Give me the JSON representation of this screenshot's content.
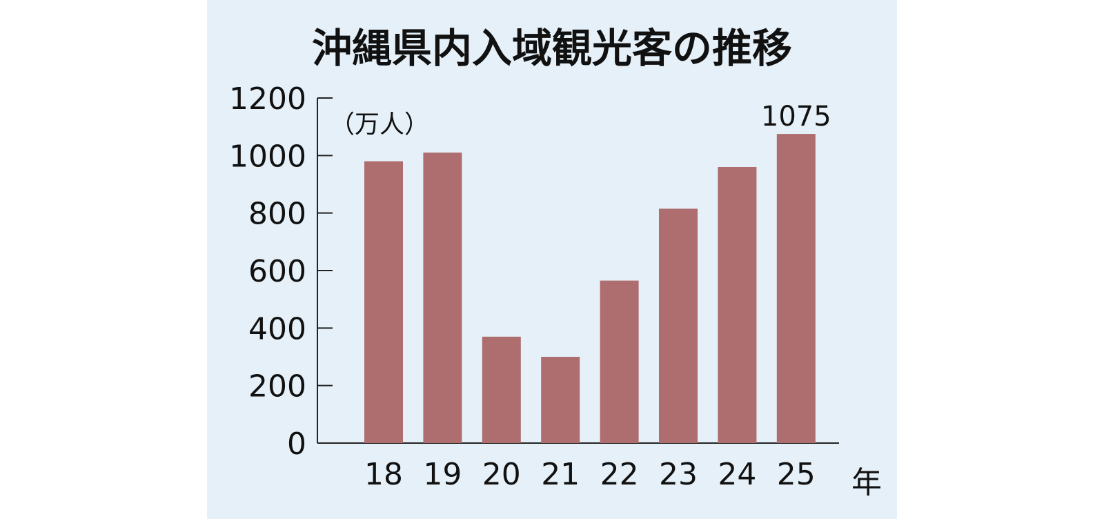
{
  "chart_data": {
    "type": "bar",
    "title": "沖縄県内入域観光客の推移",
    "ylabel": "（万人）",
    "xlabel": "年",
    "categories": [
      "18",
      "19",
      "20",
      "21",
      "22",
      "23",
      "24",
      "25"
    ],
    "values": [
      980,
      1010,
      370,
      300,
      565,
      815,
      960,
      1075
    ],
    "data_labels": {
      "7": "1075"
    },
    "ylim": [
      0,
      1200
    ],
    "yticks": [
      "0",
      "200",
      "400",
      "600",
      "800",
      "1000",
      "1200"
    ],
    "grid": false,
    "bar_color": "#ae6d6e",
    "background_color": "#e5f0f8"
  }
}
